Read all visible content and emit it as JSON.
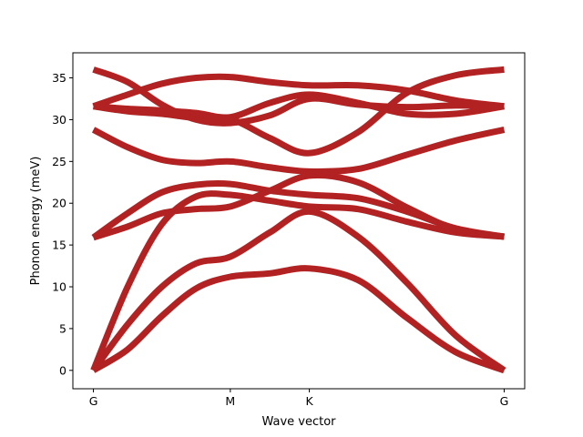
{
  "chart_data": {
    "type": "line",
    "title": "",
    "xlabel": "Wave vector",
    "ylabel": "Phonon energy (meV)",
    "x_ticks": [
      {
        "label": "G",
        "x": 0.0
      },
      {
        "label": "M",
        "x": 0.3333
      },
      {
        "label": "K",
        "x": 0.5257
      },
      {
        "label": "G",
        "x": 1.0
      }
    ],
    "xlim": [
      -0.05,
      1.05
    ],
    "ylim": [
      -2.2,
      38.0
    ],
    "y_ticks": [
      0,
      5,
      10,
      15,
      20,
      25,
      30,
      35
    ],
    "grid": false,
    "legend": "none",
    "line_color": "#b22222",
    "x": [
      0.0,
      0.0833,
      0.1667,
      0.25,
      0.3333,
      0.4295,
      0.5257,
      0.6443,
      0.7629,
      0.8815,
      1.0
    ],
    "series": [
      {
        "values": [
          0.0,
          2.5,
          6.5,
          9.8,
          11.2,
          11.6,
          12.2,
          10.8,
          6.3,
          2.2,
          0.0
        ]
      },
      {
        "values": [
          0.0,
          5.5,
          10.0,
          12.8,
          13.6,
          16.5,
          19.0,
          16.0,
          10.5,
          4.2,
          0.0
        ]
      },
      {
        "values": [
          0.0,
          10.0,
          17.5,
          20.8,
          21.0,
          20.3,
          19.6,
          19.3,
          17.8,
          16.5,
          16.0
        ]
      },
      {
        "values": [
          15.9,
          17.2,
          18.8,
          19.3,
          19.6,
          21.5,
          23.3,
          22.5,
          19.5,
          16.9,
          16.0
        ]
      },
      {
        "values": [
          15.9,
          18.8,
          21.3,
          22.2,
          22.3,
          21.5,
          21.0,
          20.6,
          19.0,
          17.0,
          16.0
        ]
      },
      {
        "values": [
          28.8,
          26.7,
          25.2,
          24.8,
          25.0,
          24.3,
          23.8,
          24.1,
          25.8,
          27.5,
          28.8
        ]
      },
      {
        "values": [
          31.6,
          31.0,
          30.7,
          30.2,
          30.1,
          27.8,
          26.0,
          28.5,
          33.2,
          35.3,
          36.0
        ]
      },
      {
        "values": [
          31.6,
          31.3,
          31.1,
          30.8,
          30.3,
          32.0,
          33.0,
          32.0,
          30.7,
          30.7,
          31.6
        ]
      },
      {
        "values": [
          31.6,
          33.0,
          34.3,
          35.0,
          35.1,
          34.5,
          34.1,
          34.1,
          33.5,
          32.3,
          31.6
        ]
      },
      {
        "values": [
          36.0,
          34.5,
          31.8,
          30.0,
          29.6,
          30.5,
          32.5,
          31.8,
          31.5,
          31.7,
          31.6
        ]
      }
    ]
  }
}
